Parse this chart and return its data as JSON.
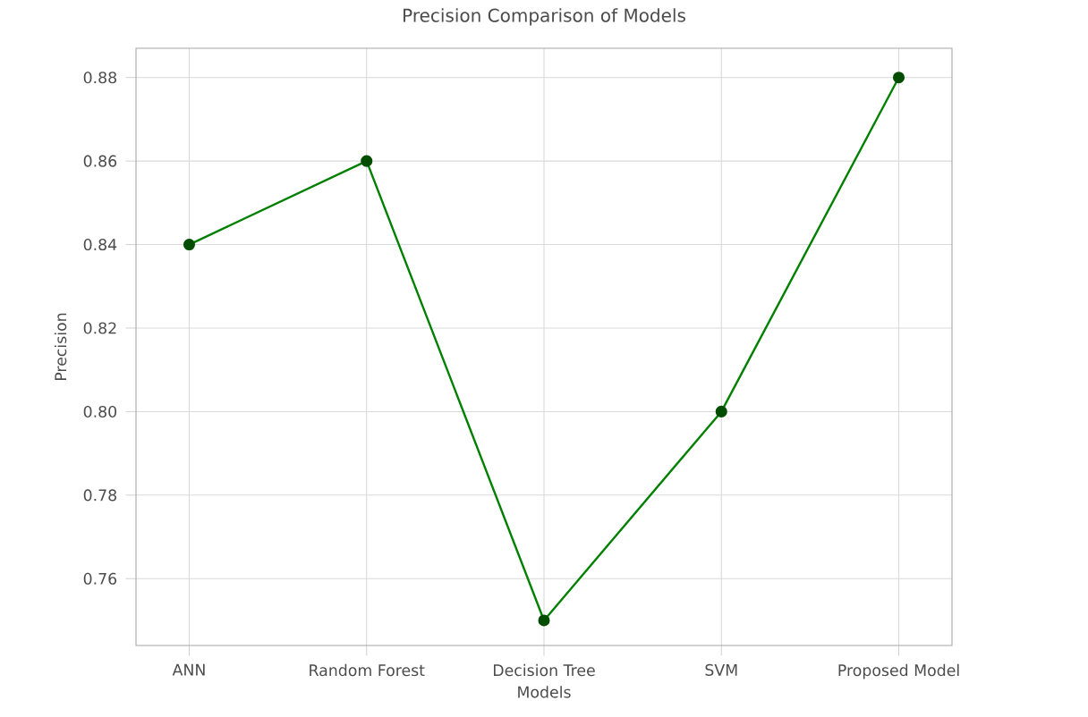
{
  "chart_data": {
    "type": "line",
    "title": "Precision Comparison of Models",
    "xlabel": "Models",
    "ylabel": "Precision",
    "categories": [
      "ANN",
      "Random Forest",
      "Decision Tree",
      "SVM",
      "Proposed Model"
    ],
    "series": [
      {
        "color": "#008000",
        "values": [
          0.84,
          0.86,
          0.75,
          0.8,
          0.88
        ]
      }
    ],
    "ylim": [
      0.744,
      0.887
    ],
    "yticks": [
      0.76,
      0.78,
      {
        "value": 0.8,
        "label": "0.80"
      },
      0.82,
      0.84,
      0.86,
      0.88
    ],
    "grid": true,
    "marker": "circle",
    "line_style": "solid"
  }
}
